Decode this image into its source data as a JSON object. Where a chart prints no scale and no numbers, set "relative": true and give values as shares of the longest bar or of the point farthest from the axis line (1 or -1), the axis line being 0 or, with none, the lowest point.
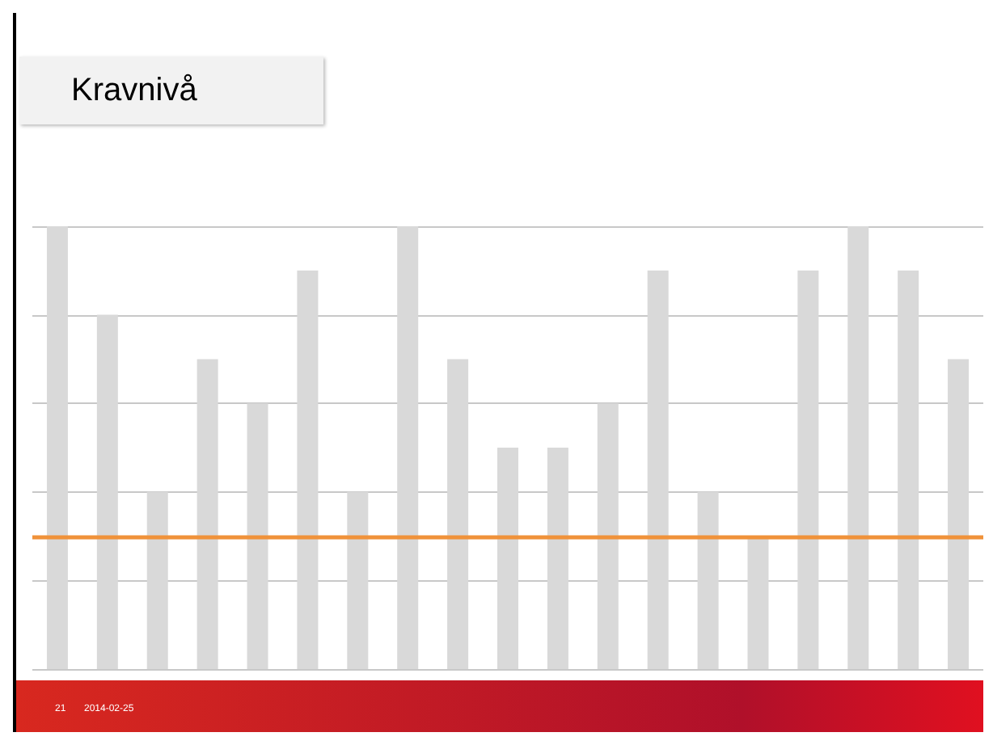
{
  "chart_data": {
    "type": "bar",
    "title": "Kravnivå",
    "relative": true,
    "grid": "y",
    "color": "#d9d9d9",
    "categories": [
      null,
      null,
      null,
      null,
      null,
      null,
      null,
      null,
      null,
      null,
      null,
      null,
      null,
      null,
      null,
      null,
      null,
      null,
      null
    ],
    "values": [
      1,
      0.8,
      0.4,
      0.7,
      0.6,
      0.9,
      0.4,
      1,
      0.7,
      0.5,
      0.5,
      0.6,
      0.9,
      0.4,
      0.3,
      0.9,
      1,
      0.9,
      0.7
    ],
    "ref_lines": [
      {
        "axis": "y",
        "value": 0.3,
        "color": "#f0923a"
      }
    ],
    "annotations": [
      "21",
      "2014-02-25"
    ]
  }
}
